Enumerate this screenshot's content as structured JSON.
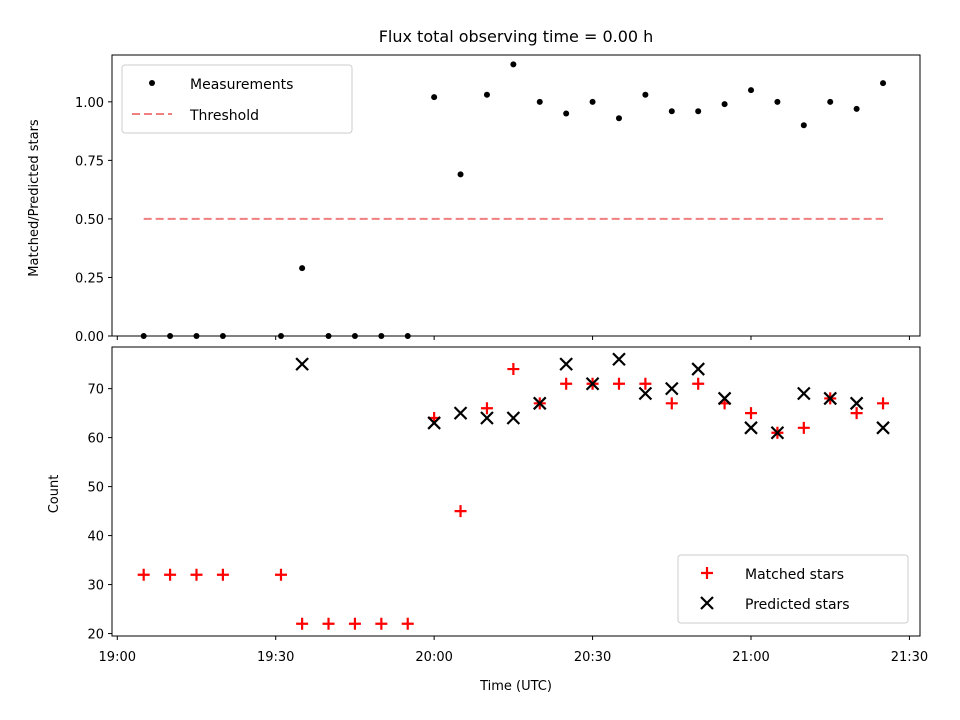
{
  "chart_data": [
    {
      "type": "scatter",
      "title": "Flux total observing time = 0.00 h",
      "xlabel": "",
      "ylabel": "Matched/Predicted stars",
      "xlim": [
        "18:59",
        "21:32"
      ],
      "ylim": [
        0,
        1.2
      ],
      "yticks": [
        "0.00",
        "0.25",
        "0.50",
        "0.75",
        "1.00"
      ],
      "legend_position": "upper-left",
      "series": [
        {
          "name": "Measurements",
          "color": "#000000",
          "marker": "dot",
          "x": [
            "19:05",
            "19:10",
            "19:15",
            "19:20",
            "19:31",
            "19:35",
            "19:40",
            "19:45",
            "19:50",
            "19:55",
            "20:00",
            "20:05",
            "20:10",
            "20:15",
            "20:20",
            "20:25",
            "20:30",
            "20:35",
            "20:40",
            "20:45",
            "20:50",
            "20:55",
            "21:00",
            "21:05",
            "21:10",
            "21:15",
            "21:20",
            "21:25"
          ],
          "y": [
            0.0,
            0.0,
            0.0,
            0.0,
            0.0,
            0.29,
            0.0,
            0.0,
            0.0,
            0.0,
            1.02,
            0.69,
            1.03,
            1.16,
            1.0,
            0.95,
            1.0,
            0.93,
            1.03,
            0.96,
            0.96,
            0.99,
            1.05,
            1.0,
            0.9,
            1.0,
            0.97,
            1.08
          ]
        },
        {
          "name": "Threshold",
          "color": "#f08080",
          "style": "dashed",
          "x": [
            "19:05",
            "21:25"
          ],
          "y": [
            0.5,
            0.5
          ]
        }
      ]
    },
    {
      "type": "scatter",
      "title": "",
      "xlabel": "Time (UTC)",
      "ylabel": "Count",
      "xlim": [
        "18:59",
        "21:32"
      ],
      "ylim": [
        19.5,
        78.5
      ],
      "xticks": [
        "19:00",
        "19:30",
        "20:00",
        "20:30",
        "21:00",
        "21:30"
      ],
      "yticks": [
        "20",
        "30",
        "40",
        "50",
        "60",
        "70"
      ],
      "legend_position": "lower-right",
      "series": [
        {
          "name": "Matched stars",
          "color": "#ff0000",
          "marker": "plus",
          "x": [
            "19:05",
            "19:10",
            "19:15",
            "19:20",
            "19:31",
            "19:35",
            "19:40",
            "19:45",
            "19:50",
            "19:55",
            "20:00",
            "20:05",
            "20:10",
            "20:15",
            "20:20",
            "20:25",
            "20:30",
            "20:35",
            "20:40",
            "20:45",
            "20:50",
            "20:55",
            "21:00",
            "21:05",
            "21:10",
            "21:15",
            "21:20",
            "21:25"
          ],
          "y": [
            32,
            32,
            32,
            32,
            32,
            22,
            22,
            22,
            22,
            22,
            64,
            45,
            66,
            74,
            67,
            71,
            71,
            71,
            71,
            67,
            71,
            67,
            65,
            61,
            62,
            68,
            65,
            67
          ]
        },
        {
          "name": "Predicted stars",
          "color": "#000000",
          "marker": "x",
          "x": [
            "19:35",
            "20:00",
            "20:05",
            "20:10",
            "20:15",
            "20:20",
            "20:25",
            "20:30",
            "20:35",
            "20:40",
            "20:45",
            "20:50",
            "20:55",
            "21:00",
            "21:05",
            "21:10",
            "21:15",
            "21:20",
            "21:25"
          ],
          "y": [
            75,
            63,
            65,
            64,
            64,
            67,
            75,
            71,
            76,
            69,
            70,
            74,
            68,
            62,
            61,
            69,
            68,
            67,
            62
          ]
        }
      ]
    }
  ]
}
